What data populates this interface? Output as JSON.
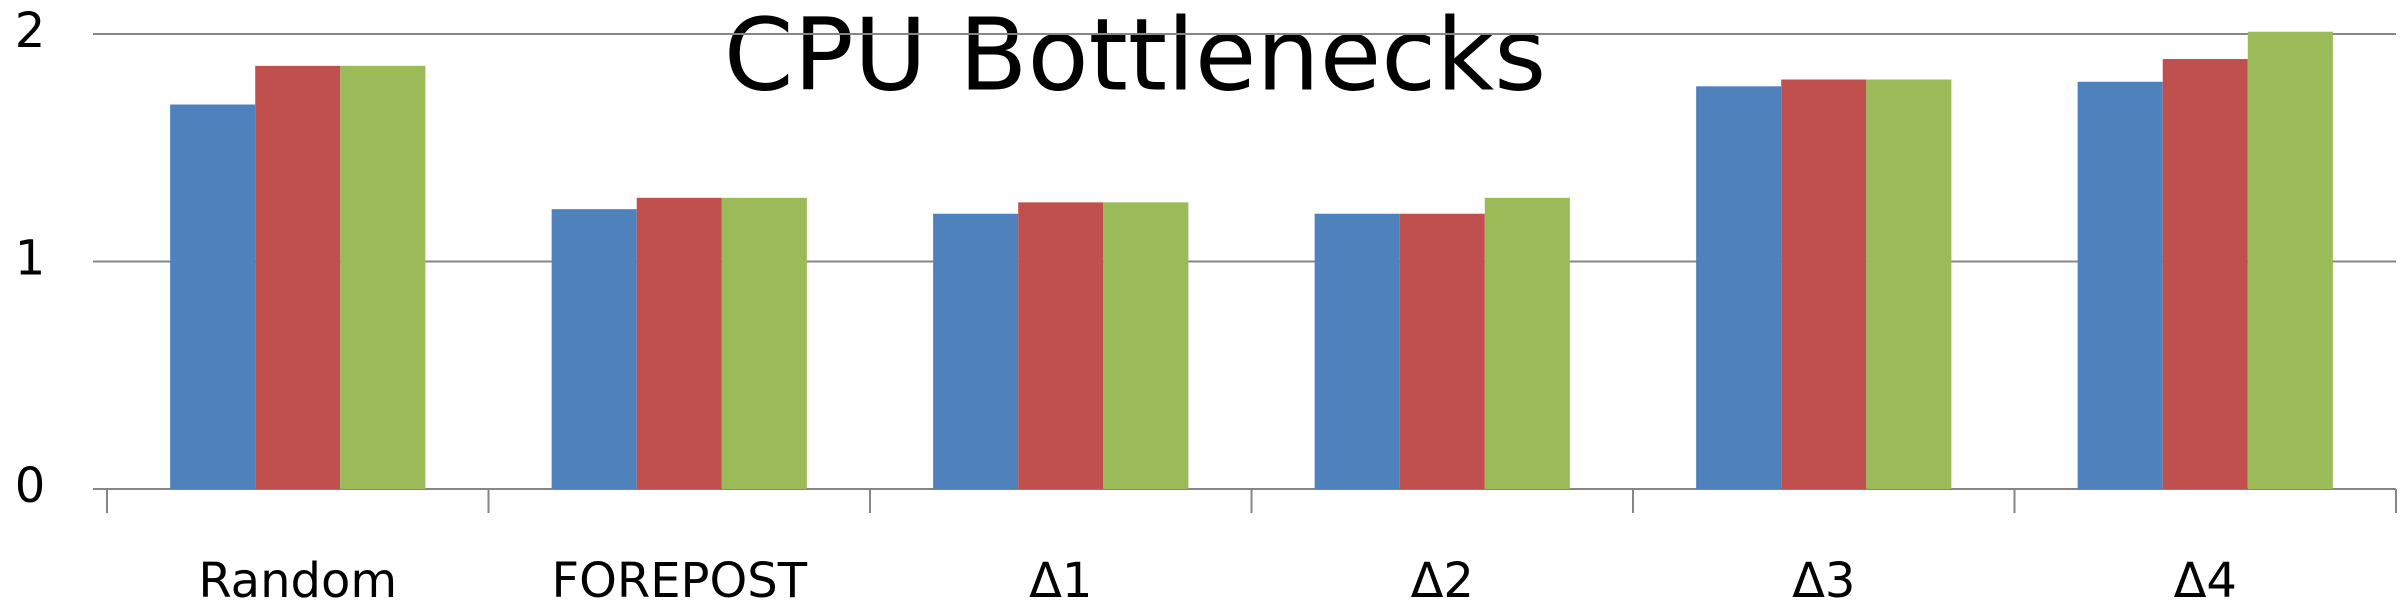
{
  "chart_data": {
    "type": "bar",
    "title": "CPU Bottlenecks",
    "categories": [
      "Random",
      "FOREPOST",
      "Δ1",
      "Δ2",
      "Δ3",
      "Δ4"
    ],
    "series": [
      {
        "color": "#4f81bd",
        "values": [
          1.69,
          1.23,
          1.21,
          1.21,
          1.77,
          1.79
        ]
      },
      {
        "color": "#c0504d",
        "values": [
          1.86,
          1.28,
          1.26,
          1.21,
          1.8,
          1.89
        ]
      },
      {
        "color": "#9bbb59",
        "values": [
          1.86,
          1.28,
          1.26,
          1.28,
          1.8,
          2.01
        ]
      }
    ],
    "ylim": [
      0,
      2
    ],
    "yticks": [
      0,
      1,
      2
    ],
    "grid": true
  }
}
